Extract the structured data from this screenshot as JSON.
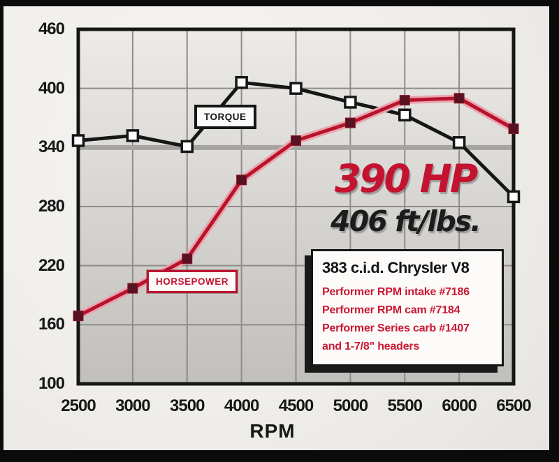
{
  "chart_data": {
    "type": "line",
    "xlabel": "RPM",
    "x": [
      2500,
      3000,
      3500,
      4000,
      4500,
      5000,
      5500,
      6000,
      6500
    ],
    "x_ticks": [
      2500,
      3000,
      3500,
      4000,
      4500,
      5000,
      5500,
      6000,
      6500
    ],
    "y_ticks": [
      100,
      160,
      220,
      280,
      340,
      400,
      460
    ],
    "ylim": [
      100,
      460
    ],
    "grid": true,
    "emphasized_gridline": 340,
    "legend_position": "inline-callout-boxes",
    "series": [
      {
        "name": "TORQUE",
        "values": [
          347,
          352,
          341,
          406,
          400,
          386,
          373,
          345,
          290
        ],
        "line_color": "#161616",
        "marker": "white-square",
        "marker_fill": "#ffffff",
        "marker_stroke": "#161616"
      },
      {
        "name": "HORSEPOWER",
        "values": [
          169,
          197,
          227,
          307,
          347,
          365,
          388,
          390,
          359
        ],
        "line_color": "#b8122d",
        "halo_color": "#e9a4ad",
        "marker": "maroon-square",
        "marker_fill": "#581120",
        "marker_stroke": "#8d1426"
      }
    ],
    "annotations": {
      "hp_peak": "390 HP",
      "torque_peak": "406 ft/lbs."
    }
  },
  "labels": {
    "torque_series": "TORQUE",
    "horsepower_series": "HORSEPOWER",
    "x_axis_title": "RPM"
  },
  "spec_box": {
    "title": "383 c.i.d. Chrysler V8",
    "lines": [
      "Performer RPM intake #7186",
      "Performer RPM cam #7184",
      "Performer Series carb #1407",
      "and 1-7/8\" headers"
    ]
  },
  "colors": {
    "accent_red": "#c41432",
    "text_black": "#161616",
    "grid_gray": "#8e8c89",
    "emphasized_grid_gray": "#a6a4a1",
    "plot_bg_top": "#edebe7",
    "plot_bg_bottom": "#c1bfbc",
    "photo_frame": "#0b0b0b"
  }
}
